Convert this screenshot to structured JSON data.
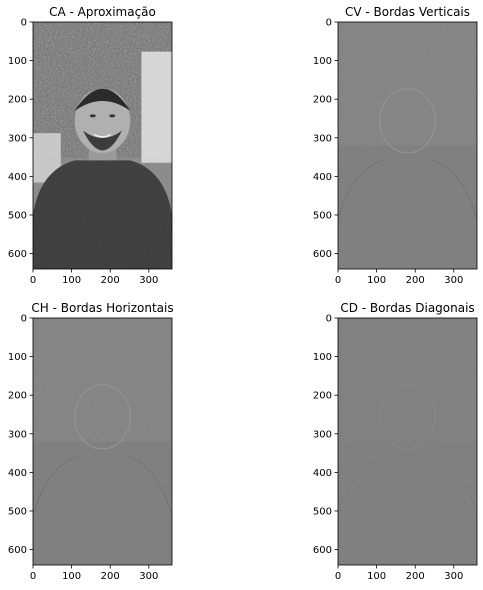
{
  "chart_data": [
    {
      "type": "heatmap",
      "title": "CA - Aproximação",
      "content": "grayscale photo",
      "xlim": [
        0,
        360
      ],
      "ylim": [
        640,
        0
      ],
      "x_ticks": [
        0,
        100,
        200,
        300
      ],
      "y_ticks": [
        0,
        100,
        200,
        300,
        400,
        500,
        600
      ]
    },
    {
      "type": "heatmap",
      "title": "CV - Bordas Verticais",
      "content": "vertical edge detail",
      "xlim": [
        0,
        360
      ],
      "ylim": [
        640,
        0
      ],
      "x_ticks": [
        0,
        100,
        200,
        300
      ],
      "y_ticks": [
        0,
        100,
        200,
        300,
        400,
        500,
        600
      ]
    },
    {
      "type": "heatmap",
      "title": "CH - Bordas Horizontais",
      "content": "horizontal edge detail",
      "xlim": [
        0,
        360
      ],
      "ylim": [
        640,
        0
      ],
      "x_ticks": [
        0,
        100,
        200,
        300
      ],
      "y_ticks": [
        0,
        100,
        200,
        300,
        400,
        500,
        600
      ]
    },
    {
      "type": "heatmap",
      "title": "CD - Bordas Diagonais",
      "content": "diagonal edge detail",
      "xlim": [
        0,
        360
      ],
      "ylim": [
        640,
        0
      ],
      "x_ticks": [
        0,
        100,
        200,
        300
      ],
      "y_ticks": [
        0,
        100,
        200,
        300,
        400,
        500,
        600
      ]
    }
  ],
  "colors": {
    "edge_background": "#808080",
    "photo_dark": "#2a2a2a",
    "photo_light": "#e8e8e8"
  }
}
